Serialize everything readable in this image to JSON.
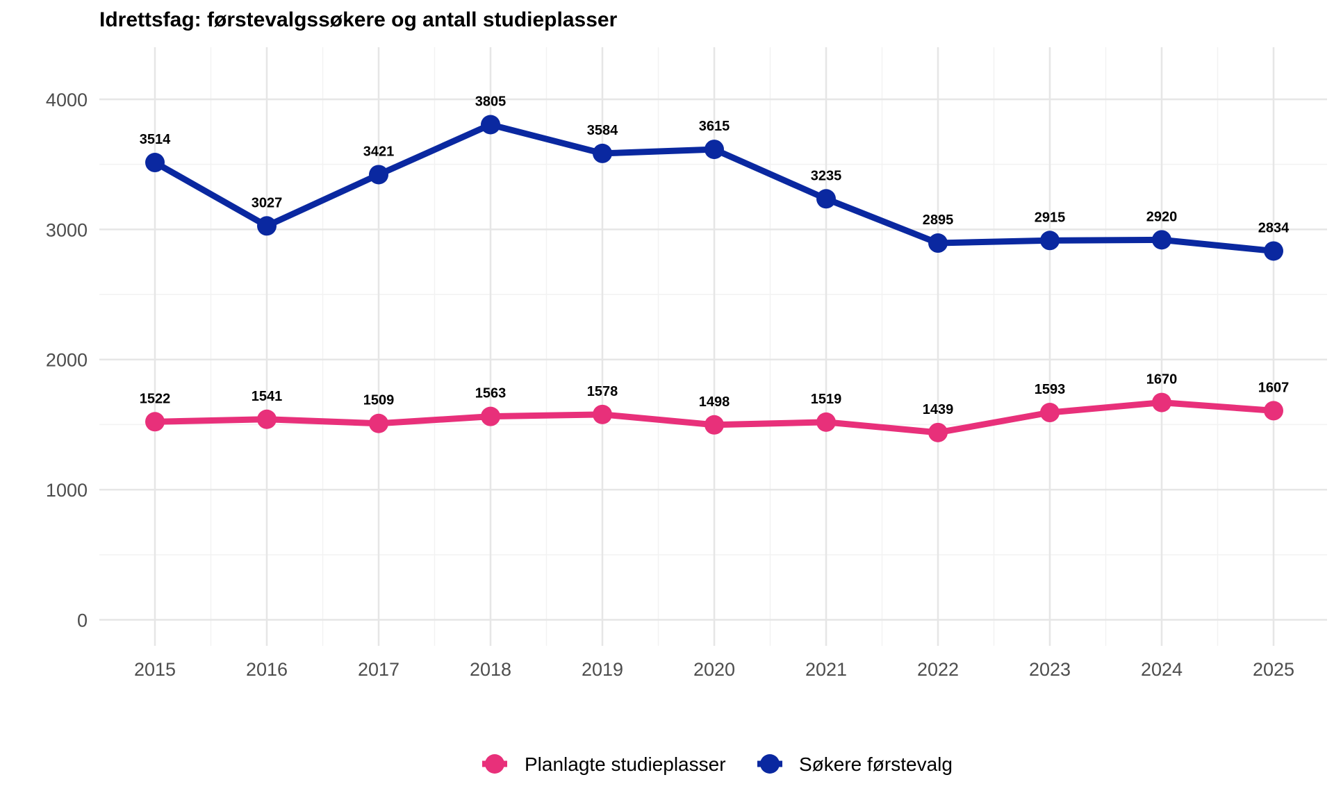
{
  "chart_data": {
    "type": "line",
    "title": "Idrettsfag: førstevalgssøkere og antall studieplasser",
    "xlabel": "",
    "ylabel": "",
    "x": [
      "2015",
      "2016",
      "2017",
      "2018",
      "2019",
      "2020",
      "2021",
      "2022",
      "2023",
      "2024",
      "2025"
    ],
    "ylim": [
      -200,
      4400
    ],
    "yticks": [
      "0",
      "1000",
      "2000",
      "3000",
      "4000"
    ],
    "grid": true,
    "legend_position": "bottom",
    "series": [
      {
        "name": "Planlagte studieplasser",
        "color": "#e8307a",
        "values": [
          1522,
          1541,
          1509,
          1563,
          1578,
          1498,
          1519,
          1439,
          1593,
          1670,
          1607
        ],
        "labels": [
          "1522",
          "1541",
          "1509",
          "1563",
          "1578",
          "1498",
          "1519",
          "1439",
          "1593",
          "1670",
          "1607"
        ]
      },
      {
        "name": "Søkere førstevalg",
        "color": "#0a28a0",
        "values": [
          3514,
          3027,
          3421,
          3805,
          3584,
          3615,
          3235,
          2895,
          2915,
          2920,
          2834
        ],
        "labels": [
          "3514",
          "3027",
          "3421",
          "3805",
          "3584",
          "3615",
          "3235",
          "2895",
          "2915",
          "2920",
          "2834"
        ]
      }
    ]
  }
}
